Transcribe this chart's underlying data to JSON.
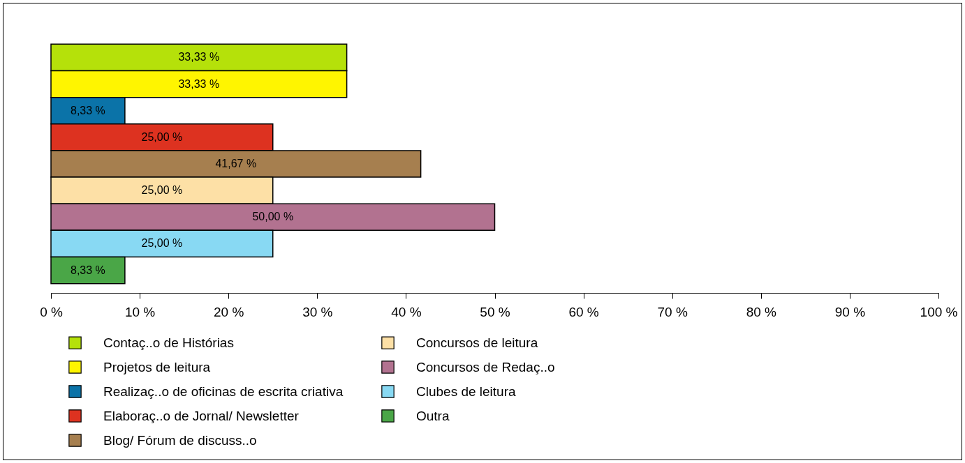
{
  "chart_data": {
    "type": "bar",
    "orientation": "horizontal",
    "categories": [
      null
    ],
    "series": [
      {
        "name": "Contaç..o de Histórias",
        "color": "#b5e10a",
        "values": [
          33.33
        ],
        "value_labels": [
          "33,33 %"
        ]
      },
      {
        "name": "Projetos de leitura",
        "color": "#fff500",
        "values": [
          33.33
        ],
        "value_labels": [
          "33,33 %"
        ]
      },
      {
        "name": "Realizaç..o de oficinas de escrita criativa",
        "color": "#0b73a8",
        "values": [
          8.33
        ],
        "value_labels": [
          "8,33 %"
        ]
      },
      {
        "name": "Elaboraç..o de Jornal/ Newsletter",
        "color": "#dd3220",
        "values": [
          25.0
        ],
        "value_labels": [
          "25,00 %"
        ]
      },
      {
        "name": "Blog/ Fórum de discuss..o",
        "color": "#a67f4f",
        "values": [
          41.67
        ],
        "value_labels": [
          "41,67 %"
        ]
      },
      {
        "name": "Concursos de leitura",
        "color": "#fde0a6",
        "values": [
          25.0
        ],
        "value_labels": [
          "25,00 %"
        ]
      },
      {
        "name": "Concursos de Redaç..o",
        "color": "#b27290",
        "values": [
          50.0
        ],
        "value_labels": [
          "50,00 %"
        ]
      },
      {
        "name": "Clubes de leitura",
        "color": "#88d9f3",
        "values": [
          25.0
        ],
        "value_labels": [
          "25,00 %"
        ]
      },
      {
        "name": "Outra",
        "color": "#4aa647",
        "values": [
          8.33
        ],
        "value_labels": [
          "8,33 %"
        ]
      }
    ],
    "xlim": [
      0,
      100
    ],
    "xticks": [
      {
        "value": 0,
        "label": "0 %"
      },
      {
        "value": 10,
        "label": "10 %"
      },
      {
        "value": 20,
        "label": "20 %"
      },
      {
        "value": 30,
        "label": "30 %"
      },
      {
        "value": 40,
        "label": "40 %"
      },
      {
        "value": 50,
        "label": "50 %"
      },
      {
        "value": 60,
        "label": "60 %"
      },
      {
        "value": 70,
        "label": "70 %"
      },
      {
        "value": 80,
        "label": "80 %"
      },
      {
        "value": 90,
        "label": "90 %"
      },
      {
        "value": 100,
        "label": "100 %"
      }
    ],
    "tick_labels": "x",
    "grid": false,
    "legend": "bottom"
  }
}
